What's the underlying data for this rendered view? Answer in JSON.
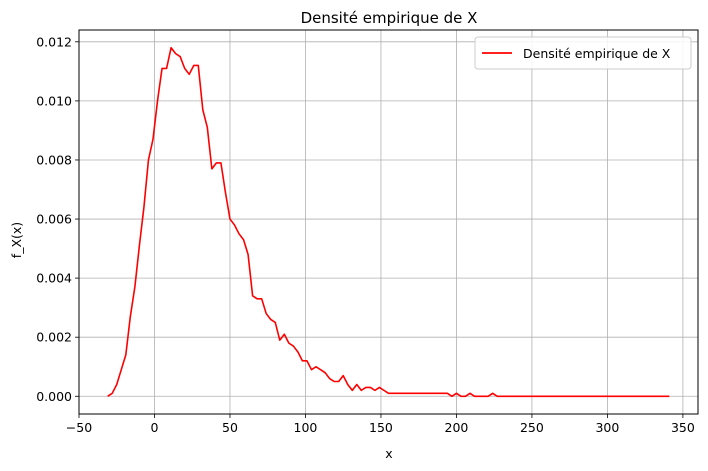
{
  "chart_data": {
    "type": "line",
    "title": "Densité empirique de X",
    "xlabel": "x",
    "ylabel": "f_X(x)",
    "xlim": [
      -50,
      360
    ],
    "ylim": [
      -0.0006,
      0.0124
    ],
    "xticks": [
      -50,
      0,
      50,
      100,
      150,
      200,
      250,
      300,
      350
    ],
    "xtick_labels": [
      "−50",
      "0",
      "50",
      "100",
      "150",
      "200",
      "250",
      "300",
      "350"
    ],
    "yticks": [
      0.0,
      0.002,
      0.004,
      0.006,
      0.008,
      0.01,
      0.012
    ],
    "ytick_labels": [
      "0.000",
      "0.002",
      "0.004",
      "0.006",
      "0.008",
      "0.010",
      "0.012"
    ],
    "grid": true,
    "legend_position": "top-right",
    "series": [
      {
        "name": "Densité empirique de X",
        "color": "#ff0000",
        "x": [
          -31,
          -28,
          -25,
          -22,
          -19,
          -16,
          -13,
          -10,
          -7,
          -4,
          -1,
          2,
          5,
          8,
          11,
          14,
          17,
          20,
          23,
          26,
          29,
          32,
          35,
          38,
          41,
          44,
          47,
          50,
          53,
          56,
          59,
          62,
          65,
          68,
          71,
          74,
          77,
          80,
          83,
          86,
          89,
          92,
          95,
          98,
          101,
          104,
          107,
          110,
          113,
          116,
          119,
          122,
          125,
          128,
          131,
          134,
          137,
          140,
          143,
          146,
          149,
          152,
          155,
          158,
          161,
          164,
          167,
          170,
          173,
          176,
          179,
          182,
          185,
          188,
          191,
          194,
          197,
          200,
          203,
          206,
          209,
          212,
          215,
          218,
          221,
          224,
          227,
          230,
          233,
          236,
          239,
          242,
          245,
          248,
          251,
          254,
          257,
          260,
          263,
          266,
          269,
          272,
          275,
          278,
          281,
          284,
          287,
          290,
          293,
          296,
          299,
          302,
          305,
          308,
          311,
          314,
          317,
          320,
          323,
          326,
          329,
          332,
          335,
          338,
          341
        ],
        "values": [
          0.0,
          0.0001,
          0.0004,
          0.0009,
          0.0014,
          0.0027,
          0.0037,
          0.0051,
          0.0064,
          0.008,
          0.0087,
          0.01,
          0.0111,
          0.0111,
          0.0118,
          0.0116,
          0.0115,
          0.0111,
          0.0109,
          0.0112,
          0.0112,
          0.0097,
          0.0091,
          0.0077,
          0.0079,
          0.0079,
          0.0069,
          0.006,
          0.0058,
          0.0055,
          0.0053,
          0.0048,
          0.0034,
          0.0033,
          0.0033,
          0.0028,
          0.0026,
          0.0025,
          0.0019,
          0.0021,
          0.0018,
          0.0017,
          0.0015,
          0.0012,
          0.0012,
          0.0009,
          0.001,
          0.0009,
          0.0008,
          0.0006,
          0.0005,
          0.0005,
          0.0007,
          0.0004,
          0.0002,
          0.0004,
          0.0002,
          0.0003,
          0.0003,
          0.0002,
          0.0003,
          0.0002,
          0.0001,
          0.0001,
          0.0001,
          0.0001,
          0.0001,
          0.0001,
          0.0001,
          0.0001,
          0.0001,
          0.0001,
          0.0001,
          0.0001,
          0.0001,
          0.0001,
          0.0,
          0.0001,
          0.0,
          0.0,
          0.0001,
          0.0,
          0.0,
          0.0,
          0.0,
          0.0001,
          0.0,
          0.0,
          0.0,
          0.0,
          0.0,
          0.0,
          0.0,
          0.0,
          0.0,
          0.0,
          0.0,
          0.0,
          0.0,
          0.0,
          0.0,
          0.0,
          0.0,
          0.0,
          0.0,
          0.0,
          0.0,
          0.0,
          0.0,
          0.0,
          0.0,
          0.0,
          0.0,
          0.0,
          0.0,
          0.0,
          0.0,
          0.0,
          0.0,
          0.0,
          0.0,
          0.0,
          0.0,
          0.0,
          0.0
        ]
      }
    ]
  }
}
